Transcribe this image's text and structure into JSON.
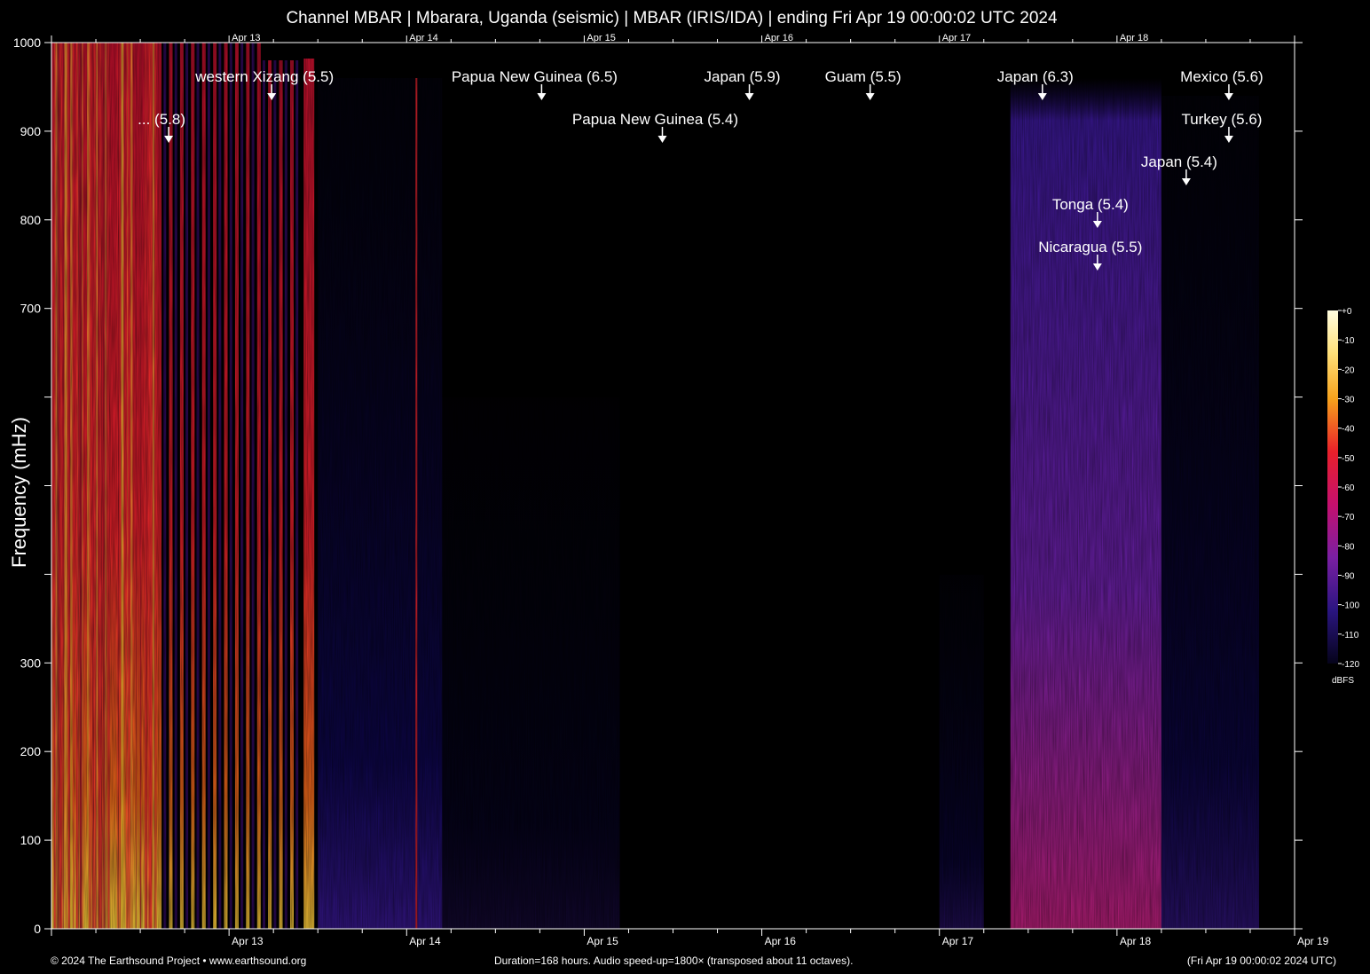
{
  "title": "Channel MBAR | Mbarara, Uganda (seismic) | MBAR (IRIS/IDA) | ending Fri Apr 19 00:00:02 UTC 2024",
  "ylabel": "Frequency (mHz)",
  "footer": {
    "left": "© 2024 The Earthsound Project • www.earthsound.org",
    "center": "Duration=168 hours. Audio speed-up=1800× (transposed about 11 octaves).",
    "right": "(Fri Apr 19 00:00:02 2024 UTC)"
  },
  "colorbar": {
    "unit": "dBFS",
    "ticks": [
      "+0",
      "-10",
      "-20",
      "-30",
      "-40",
      "-50",
      "-60",
      "-70",
      "-80",
      "-90",
      "-100",
      "-110",
      "-120"
    ]
  },
  "chart_data": {
    "type": "heatmap",
    "title": "Channel MBAR | Mbarara, Uganda (seismic) | MBAR (IRIS/IDA) | ending Fri Apr 19 00:00:02 UTC 2024",
    "ylabel": "Frequency (mHz)",
    "xlabel": "",
    "xlim_days": [
      12,
      19
    ],
    "ylim": [
      0,
      1000
    ],
    "x_ticks": [
      "Apr 13",
      "Apr 14",
      "Apr 15",
      "Apr 16",
      "Apr 17",
      "Apr 18",
      "Apr 19"
    ],
    "top_x_ticks": [
      "Apr 13",
      "Apr 14",
      "Apr 15",
      "Apr 16",
      "Apr 17",
      "Apr 18"
    ],
    "y_ticks": [
      "0",
      "100",
      "200",
      "300",
      "700",
      "800",
      "900",
      "1000"
    ],
    "y_tick_values": [
      0,
      100,
      200,
      300,
      700,
      800,
      900,
      1000
    ],
    "colormap": "inferno-like (black-purple-red-yellow-white)",
    "colors": {
      "low": "#000000",
      "mid": "#7a1fa2",
      "high": "#e8192c",
      "peak": "#fff6b0"
    },
    "events": [
      {
        "label": "western Xizang (5.5)",
        "time_days": 13.24,
        "label_row": 1
      },
      {
        "label": "... (5.8)",
        "time_days": 12.66,
        "label_row": 2
      },
      {
        "label": "Papua New Guinea (6.5)",
        "time_days": 14.76,
        "label_row": 1
      },
      {
        "label": "Papua New Guinea (5.4)",
        "time_days": 15.44,
        "label_row": 2
      },
      {
        "label": "Japan (5.9)",
        "time_days": 15.93,
        "label_row": 1
      },
      {
        "label": "Guam (5.5)",
        "time_days": 16.61,
        "label_row": 1
      },
      {
        "label": "Japan (6.3)",
        "time_days": 17.58,
        "label_row": 1
      },
      {
        "label": "Mexico (5.6)",
        "time_days": 18.63,
        "label_row": 1
      },
      {
        "label": "Turkey (5.6)",
        "time_days": 18.63,
        "label_row": 2
      },
      {
        "label": "Japan (5.4)",
        "time_days": 18.39,
        "label_row": 3
      },
      {
        "label": "Tonga (5.4)",
        "time_days": 17.89,
        "label_row": 4
      },
      {
        "label": "Nicaragua (5.5)",
        "time_days": 17.89,
        "label_row": 5
      }
    ]
  }
}
